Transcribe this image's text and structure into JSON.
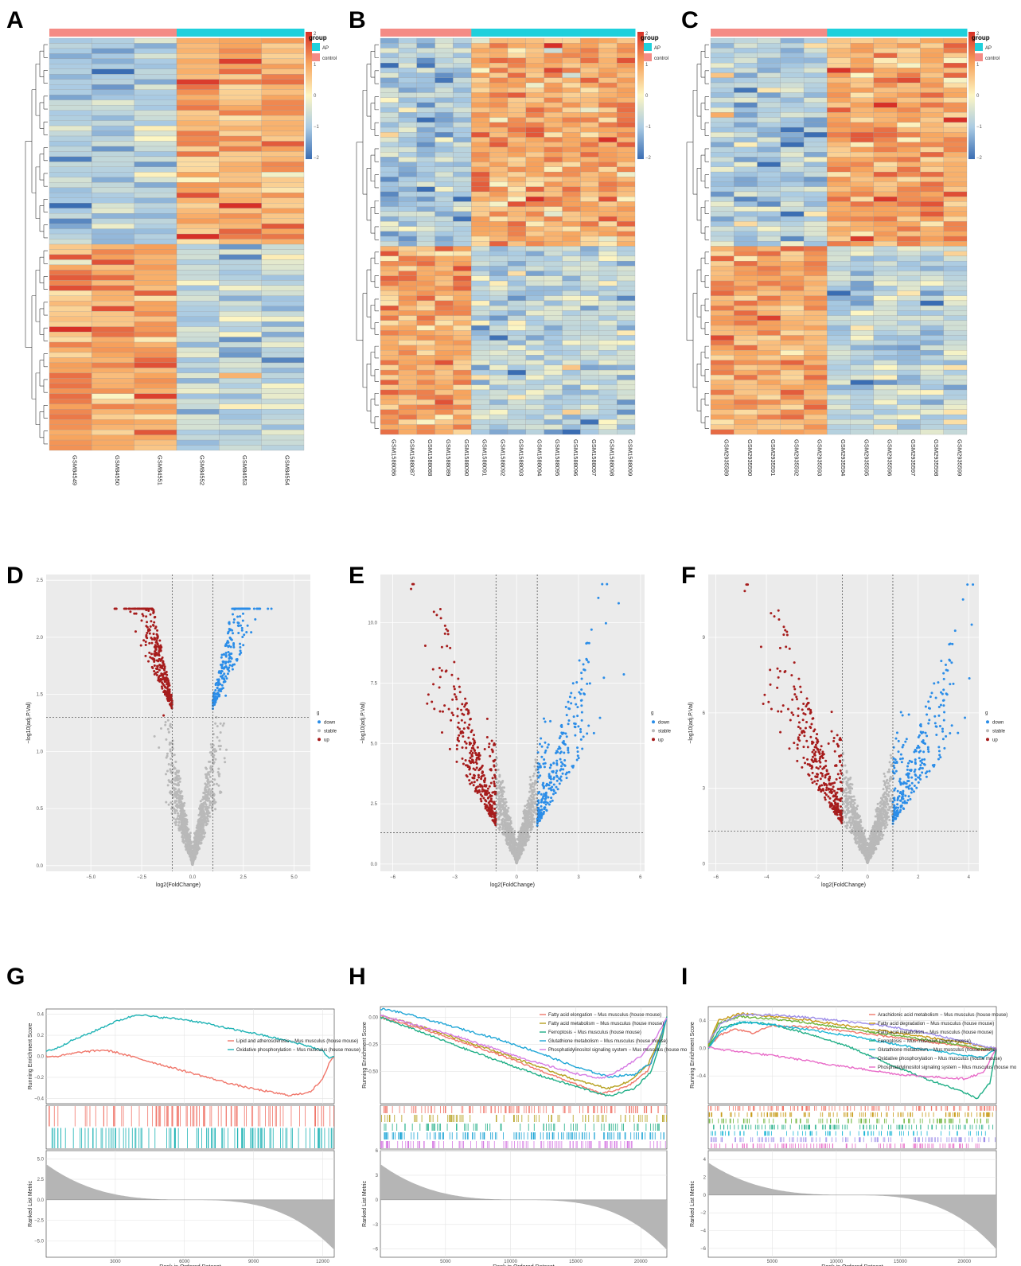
{
  "panels": {
    "heatmaps": [
      "A",
      "B",
      "C"
    ],
    "volcanos": [
      "D",
      "E",
      "F"
    ],
    "gsea": [
      "G",
      "H",
      "I"
    ]
  },
  "colors": {
    "ap": "#1fd0dc",
    "control": "#f48b85",
    "high": "#d73027",
    "mid": "#fdf6c3",
    "low": "#3a6db3",
    "down": "#2b8de8",
    "stable": "#b9b9b9",
    "up": "#a61c1c",
    "panel_bg": "#ebebeb"
  },
  "chart_data": [
    {
      "panel": "A",
      "type": "heatmap",
      "legend": {
        "title": "group",
        "items": [
          "AP",
          "control"
        ]
      },
      "scale": {
        "max": 2,
        "mid": 0,
        "min": -2,
        "ticks": [
          "2",
          "1",
          "0",
          "−1",
          "−2"
        ]
      },
      "samples": [
        "GSM84549",
        "GSM84550",
        "GSM84551",
        "GSM84552",
        "GSM84553",
        "GSM84554"
      ],
      "groups": [
        "control",
        "control",
        "control",
        "AP",
        "AP",
        "AP"
      ],
      "n_rows": 80,
      "split_row": 40
    },
    {
      "panel": "B",
      "type": "heatmap",
      "legend": {
        "title": "group",
        "items": [
          "AP",
          "control"
        ]
      },
      "scale": {
        "max": 2,
        "mid": 0,
        "min": -2,
        "ticks": [
          "2",
          "1",
          "0",
          "−1",
          "−2"
        ]
      },
      "samples": [
        "GSM1588086",
        "GSM1588087",
        "GSM1588088",
        "GSM1588089",
        "GSM1588090",
        "GSM1588091",
        "GSM1588092",
        "GSM1588093",
        "GSM1588094",
        "GSM1588095",
        "GSM1588096",
        "GSM1588097",
        "GSM1588098",
        "GSM1588099"
      ],
      "groups": [
        "control",
        "control",
        "control",
        "control",
        "control",
        "AP",
        "AP",
        "AP",
        "AP",
        "AP",
        "AP",
        "AP",
        "AP",
        "AP"
      ],
      "n_rows": 80,
      "split_row": 42
    },
    {
      "panel": "C",
      "type": "heatmap",
      "legend": {
        "title": "group",
        "items": [
          "AP",
          "control"
        ]
      },
      "scale": {
        "max": 2,
        "mid": 0,
        "min": -2,
        "ticks": [
          "2",
          "1",
          "0",
          "−1",
          "−2"
        ]
      },
      "samples": [
        "GSM2935589",
        "GSM2935590",
        "GSM2935591",
        "GSM2935592",
        "GSM2935593",
        "GSM2935594",
        "GSM2935595",
        "GSM2935596",
        "GSM2935597",
        "GSM2935598",
        "GSM2935599"
      ],
      "groups": [
        "control",
        "control",
        "control",
        "control",
        "control",
        "AP",
        "AP",
        "AP",
        "AP",
        "AP",
        "AP"
      ],
      "n_rows": 80,
      "split_row": 42
    },
    {
      "panel": "D",
      "type": "scatter",
      "xlabel": "log2(FoldChange)",
      "ylabel": "−log10(adj.P.Val)",
      "xlim": [
        -7.2,
        5.8
      ],
      "ylim": [
        -0.05,
        2.55
      ],
      "xticks": [
        -5,
        -2.5,
        0,
        2.5,
        5
      ],
      "xticklabels": [
        "−5.0",
        "−2.5",
        "0.0",
        "2.5",
        "5.0"
      ],
      "yticks": [
        0,
        0.5,
        1,
        1.5,
        2,
        2.5
      ],
      "yticklabels": [
        "0.0",
        "0.5",
        "1.0",
        "1.5",
        "2.0",
        "2.5"
      ],
      "fc_cutoff": 1,
      "p_cutoff": 1.3,
      "legend": {
        "title": "g",
        "items": [
          "down",
          "stable",
          "up"
        ]
      },
      "peak": 2.25,
      "spread_x": 3.2
    },
    {
      "panel": "E",
      "type": "scatter",
      "xlabel": "log2(FoldChange)",
      "ylabel": "−log10(adj.P.Val)",
      "xlim": [
        -6.6,
        6.2
      ],
      "ylim": [
        -0.3,
        12.0
      ],
      "xticks": [
        -6,
        -3,
        0,
        3,
        6
      ],
      "xticklabels": [
        "−6",
        "−3",
        "0",
        "3",
        "6"
      ],
      "yticks": [
        0,
        2.5,
        5,
        7.5,
        10
      ],
      "yticklabels": [
        "0.0",
        "2.5",
        "5.0",
        "7.5",
        "10.0"
      ],
      "fc_cutoff": 1,
      "p_cutoff": 1.3,
      "legend": {
        "title": "g",
        "items": [
          "down",
          "stable",
          "up"
        ]
      },
      "peak": 11.6,
      "spread_x": 4.2
    },
    {
      "panel": "F",
      "type": "scatter",
      "xlabel": "log2(FoldChange)",
      "ylabel": "−log10(adj.P.Val)",
      "xlim": [
        -6.3,
        4.4
      ],
      "ylim": [
        -0.3,
        11.5
      ],
      "xticks": [
        -6,
        -4,
        -2,
        0,
        2,
        4
      ],
      "xticklabels": [
        "−6",
        "−4",
        "−2",
        "0",
        "2",
        "4"
      ],
      "yticks": [
        0,
        3,
        6,
        9
      ],
      "yticklabels": [
        "0",
        "3",
        "6",
        "9"
      ],
      "fc_cutoff": 1,
      "p_cutoff": 1.3,
      "legend": {
        "title": "g",
        "items": [
          "down",
          "stable",
          "up"
        ]
      },
      "peak": 11.1,
      "spread_x": 4.0
    },
    {
      "panel": "G",
      "type": "line",
      "ylabel": "Running Enrichment Score",
      "ylabel2": "Ranked List Metric",
      "xlabel": "Rank in Ordered Dataset",
      "xlim": [
        0,
        12500
      ],
      "xticks": [
        3000,
        6000,
        9000,
        12000
      ],
      "xticklabels": [
        "3000",
        "6000",
        "9000",
        "12000"
      ],
      "ylim": [
        -0.45,
        0.45
      ],
      "yticks": [
        -0.4,
        -0.2,
        0,
        0.2,
        0.4
      ],
      "yticklabels": [
        "−0.4",
        "−0.2",
        "0.0",
        "0.2",
        "0.4"
      ],
      "ylim2": [
        -7,
        6
      ],
      "yticks2": [
        -5,
        -2.5,
        0,
        2.5,
        5
      ],
      "yticklabels2": [
        "−5.0",
        "−2.5",
        "0.0",
        "2.5",
        "5.0"
      ],
      "series": [
        {
          "name": "Lipid and atherosclerosis − Mus musculus (house mouse)",
          "color": "#f0766a",
          "x": [
            0,
            500,
            1000,
            1500,
            2000,
            2500,
            3000,
            4000,
            5000,
            6000,
            7000,
            8000,
            9000,
            10000,
            10500,
            11000,
            11500,
            12000,
            12300,
            12500
          ],
          "y": [
            0.0,
            0.0,
            0.02,
            0.04,
            0.05,
            0.06,
            0.04,
            -0.02,
            -0.08,
            -0.14,
            -0.2,
            -0.26,
            -0.31,
            -0.35,
            -0.37,
            -0.36,
            -0.33,
            -0.22,
            -0.05,
            0.0
          ]
        },
        {
          "name": "Oxidative phosphorylation − Mus musculus (house mouse)",
          "color": "#1fb3b5",
          "x": [
            0,
            500,
            1000,
            2000,
            3000,
            4000,
            4500,
            5000,
            6000,
            7000,
            8000,
            9000,
            10000,
            11000,
            11500,
            12000,
            12300,
            12500
          ],
          "y": [
            0.05,
            0.08,
            0.14,
            0.23,
            0.33,
            0.4,
            0.38,
            0.37,
            0.35,
            0.31,
            0.26,
            0.22,
            0.17,
            0.12,
            0.09,
            0.05,
            -0.02,
            0.0
          ]
        }
      ]
    },
    {
      "panel": "H",
      "type": "line",
      "ylabel": "Running Enrichment Score",
      "ylabel2": "Ranked List Metric",
      "xlabel": "Rank in Ordered Dataset",
      "xlim": [
        0,
        22000
      ],
      "xticks": [
        5000,
        10000,
        15000,
        20000
      ],
      "xticklabels": [
        "5000",
        "10000",
        "15000",
        "20000"
      ],
      "ylim": [
        -0.8,
        0.1
      ],
      "yticks": [
        -0.5,
        -0.25,
        0
      ],
      "yticklabels": [
        "−0.50",
        "−0.25",
        "0.00"
      ],
      "ylim2": [
        -7,
        6
      ],
      "yticks2": [
        -6,
        -3,
        0,
        3,
        6
      ],
      "yticklabels2": [
        "−6",
        "−3",
        "0",
        "3",
        "6"
      ],
      "series": [
        {
          "name": "Fatty acid elongation − Mus musculus (house mouse)",
          "color": "#f0766a",
          "x": [
            0,
            3000,
            6000,
            9000,
            12000,
            15000,
            17000,
            19000,
            20500,
            21500,
            22000
          ],
          "y": [
            0.0,
            -0.1,
            -0.22,
            -0.34,
            -0.48,
            -0.62,
            -0.71,
            -0.64,
            -0.5,
            -0.2,
            0.0
          ]
        },
        {
          "name": "Fatty acid metabolism − Mus musculus (house mouse)",
          "color": "#b5a01e",
          "x": [
            0,
            3000,
            6000,
            9000,
            12000,
            15000,
            17500,
            19000,
            20500,
            21500,
            22000
          ],
          "y": [
            0.02,
            -0.08,
            -0.2,
            -0.32,
            -0.45,
            -0.58,
            -0.66,
            -0.6,
            -0.45,
            -0.18,
            0.0
          ]
        },
        {
          "name": "Ferroptosis − Mus musculus (house mouse)",
          "color": "#1fae86",
          "x": [
            0,
            3000,
            6000,
            9000,
            12000,
            15000,
            17500,
            19500,
            20800,
            21600,
            22000
          ],
          "y": [
            0.0,
            -0.13,
            -0.27,
            -0.4,
            -0.53,
            -0.64,
            -0.73,
            -0.66,
            -0.5,
            -0.2,
            0.0
          ]
        },
        {
          "name": "Glutathione metabolism − Mus musculus (house mouse)",
          "color": "#1ea5d6",
          "x": [
            0,
            1000,
            3000,
            6000,
            9000,
            12000,
            15000,
            17500,
            19500,
            20800,
            21600,
            22000
          ],
          "y": [
            0.08,
            0.06,
            0.0,
            -0.1,
            -0.2,
            -0.32,
            -0.46,
            -0.55,
            -0.53,
            -0.42,
            -0.15,
            0.0
          ]
        },
        {
          "name": "Phosphatidylinositol signaling system − Mus musculus (house mo",
          "color": "#d67be3",
          "x": [
            0,
            3000,
            6000,
            9000,
            12000,
            15000,
            17000,
            18500,
            20000,
            21200,
            22000
          ],
          "y": [
            0.02,
            -0.08,
            -0.18,
            -0.3,
            -0.42,
            -0.52,
            -0.57,
            -0.48,
            -0.36,
            -0.18,
            0.0
          ]
        }
      ]
    },
    {
      "panel": "I",
      "type": "line",
      "ylabel": "Running Enrichment Score",
      "ylabel2": "Ranked List Metric",
      "xlabel": "Rank in Ordered Dataset",
      "xlim": [
        0,
        22500
      ],
      "xticks": [
        5000,
        10000,
        15000,
        20000
      ],
      "xticklabels": [
        "5000",
        "10000",
        "15000",
        "20000"
      ],
      "ylim": [
        -0.8,
        0.6
      ],
      "yticks": [
        -0.4,
        0,
        0.4
      ],
      "yticklabels": [
        "−0.4",
        "0.0",
        "0.4"
      ],
      "ylim2": [
        -7,
        5
      ],
      "yticks2": [
        -6,
        -4,
        -2,
        0,
        2,
        4
      ],
      "yticklabels2": [
        "−6",
        "−4",
        "−2",
        "0",
        "2",
        "4"
      ],
      "series": [
        {
          "name": "Arachidonic acid metabolism − Mus musculus (house mouse)",
          "color": "#f0766a",
          "x": [
            0,
            800,
            2000,
            3500,
            5000,
            8000,
            11000,
            14000,
            17000,
            20000,
            21500,
            22500
          ],
          "y": [
            0.0,
            0.18,
            0.28,
            0.22,
            0.33,
            0.3,
            0.24,
            0.17,
            0.1,
            0.02,
            -0.03,
            0.0
          ]
        },
        {
          "name": "Fatty acid degradation − Mus musculus (house mouse)",
          "color": "#c79a17",
          "x": [
            0,
            800,
            2500,
            5000,
            8000,
            11000,
            14000,
            17000,
            20000,
            21500,
            22500
          ],
          "y": [
            0.05,
            0.4,
            0.5,
            0.46,
            0.4,
            0.32,
            0.24,
            0.16,
            0.08,
            0.02,
            0.0
          ]
        },
        {
          "name": "Fatty acid metabolism − Mus musculus (house mouse)",
          "color": "#6eb33a",
          "x": [
            0,
            800,
            2500,
            5000,
            8000,
            11000,
            14000,
            17000,
            20000,
            21500,
            22500
          ],
          "y": [
            0.02,
            0.36,
            0.46,
            0.42,
            0.36,
            0.28,
            0.2,
            0.12,
            0.04,
            -0.02,
            0.0
          ]
        },
        {
          "name": "Ferroptosis − Mus musculus (house mouse)",
          "color": "#1fae86",
          "x": [
            0,
            1000,
            3000,
            5000,
            8000,
            11000,
            14000,
            17000,
            19500,
            21000,
            22000,
            22500
          ],
          "y": [
            0.0,
            0.3,
            0.38,
            0.34,
            0.2,
            0.02,
            -0.22,
            -0.44,
            -0.6,
            -0.72,
            -0.5,
            0.0
          ]
        },
        {
          "name": "Glutathione metabolism − Mus musculus (house mouse)",
          "color": "#1eb7d6",
          "x": [
            0,
            1000,
            2500,
            5000,
            8000,
            11000,
            14000,
            17000,
            20000,
            21500,
            22500
          ],
          "y": [
            0.0,
            0.25,
            0.38,
            0.34,
            0.26,
            0.18,
            0.08,
            -0.02,
            -0.1,
            -0.14,
            0.0
          ]
        },
        {
          "name": "Oxidative phosphorylation − Mus musculus (house mouse)",
          "color": "#9d8de8",
          "x": [
            0,
            1000,
            2500,
            5000,
            8000,
            11000,
            14000,
            17000,
            20000,
            21500,
            22500
          ],
          "y": [
            0.08,
            0.36,
            0.48,
            0.48,
            0.44,
            0.38,
            0.32,
            0.22,
            0.1,
            0.02,
            0.0
          ]
        },
        {
          "name": "Phosphatidylinositol signaling system − Mus musculus (house mo",
          "color": "#e86bc8",
          "x": [
            0,
            1000,
            3000,
            6000,
            9000,
            12000,
            15000,
            18000,
            20000,
            21500,
            22500
          ],
          "y": [
            0.02,
            -0.02,
            -0.06,
            -0.13,
            -0.22,
            -0.3,
            -0.38,
            -0.42,
            -0.44,
            -0.35,
            0.0
          ]
        }
      ]
    }
  ]
}
